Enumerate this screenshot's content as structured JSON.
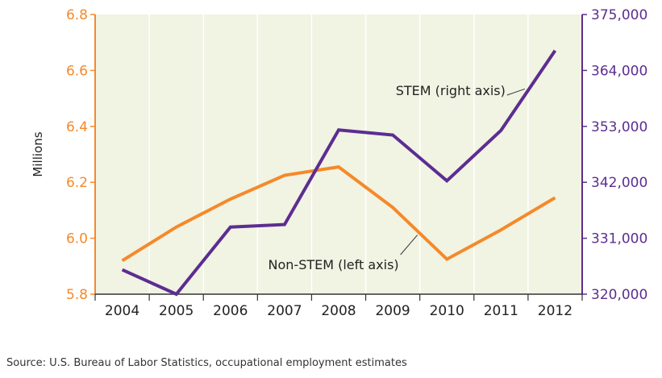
{
  "chart_data": {
    "type": "line",
    "title": "",
    "ylabel": "Millions",
    "x": [
      "2004",
      "2005",
      "2006",
      "2007",
      "2008",
      "2009",
      "2010",
      "2011",
      "2012"
    ],
    "ylim": [
      5.8,
      6.8
    ],
    "y2lim": [
      320000,
      375000
    ],
    "yticks": [
      "5.8",
      "6.0",
      "6.2",
      "6.4",
      "6.6",
      "6.8"
    ],
    "y2ticks": [
      "320,000",
      "331,000",
      "342,000",
      "353,000",
      "364,000",
      "375,000"
    ],
    "series": [
      {
        "name": "Non-STEM (left axis)",
        "axis": "left",
        "color": "#f5892a",
        "values": [
          5.92,
          6.04,
          6.14,
          6.225,
          6.255,
          6.11,
          5.925,
          6.03,
          6.145
        ]
      },
      {
        "name": "STEM (right axis)",
        "axis": "right",
        "color": "#5c2d91",
        "values": [
          324800,
          320000,
          333200,
          333700,
          352300,
          351300,
          342300,
          352200,
          367900
        ]
      }
    ],
    "plot_background": "#f1f3e3",
    "grid": false
  },
  "source": "Source: U.S. Bureau of Labor Statistics, occupational employment estimates"
}
